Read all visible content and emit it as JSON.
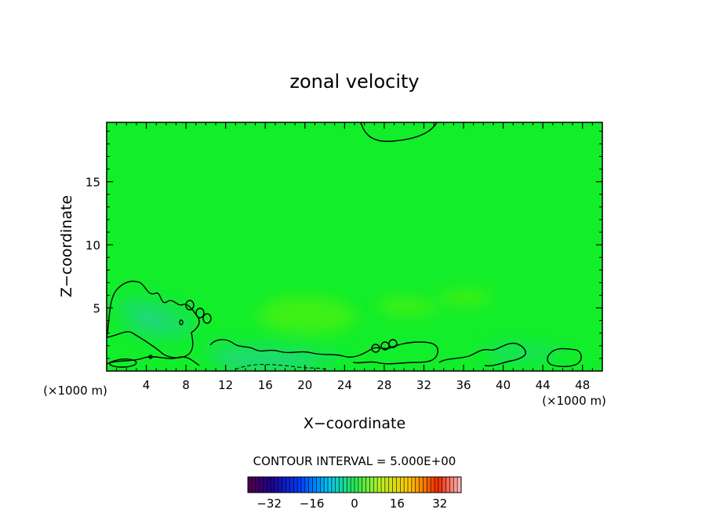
{
  "chart_data": {
    "type": "heatmap",
    "title": "zonal velocity",
    "xlabel": "X−coordinate",
    "ylabel": "Z−coordinate",
    "x_unit_left": "(×1000 m)",
    "x_unit_right": "(×1000 m)",
    "xlim": [
      0,
      50
    ],
    "ylim": [
      0,
      19.7
    ],
    "x_ticks": [
      "4",
      "8",
      "12",
      "16",
      "20",
      "24",
      "28",
      "32",
      "36",
      "40",
      "44",
      "48"
    ],
    "y_ticks": [
      "5",
      "10",
      "15"
    ],
    "contour_interval": "CONTOUR INTERVAL = 5.000E+00",
    "colorbar": {
      "range": [
        -40,
        40
      ],
      "ticks": [
        "−32",
        "−16",
        "0",
        "16",
        "32"
      ]
    },
    "field_colors": {
      "background": "#12ee2a",
      "weak_positive": "#3cf019",
      "weak_negative": "#19e255",
      "moderate_negative": "#20d77a",
      "contour": "#000000"
    },
    "grid": false
  }
}
